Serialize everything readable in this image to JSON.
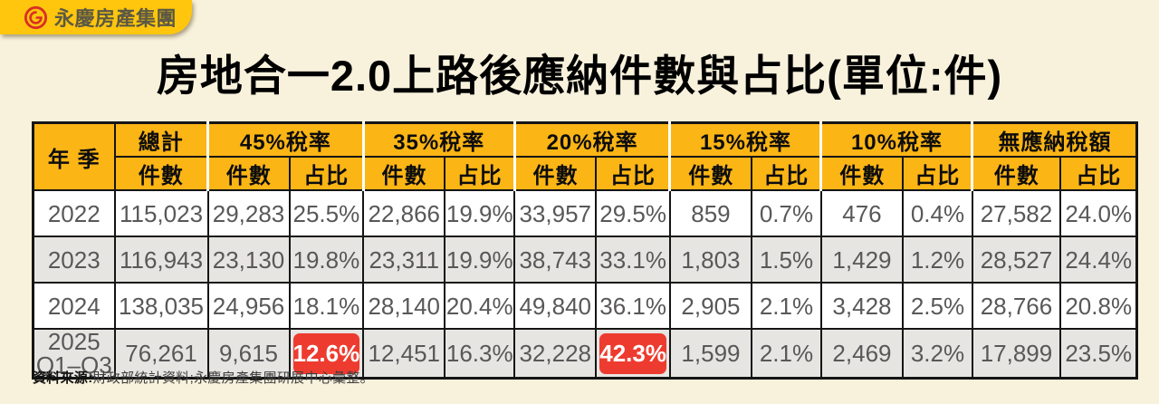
{
  "logo": {
    "company": "永慶房產集團",
    "icon": "yungching-spiral-g-icon"
  },
  "title": {
    "normal": "房地合一2.0上路後",
    "strong": "應納件數與占比(單位:件)"
  },
  "chart_data": {
    "type": "table",
    "title": "房地合一2.0上路後應納件數與占比(單位:件)",
    "year_header": "年 季",
    "groups": [
      {
        "label": "總計",
        "subs": [
          "件數"
        ]
      },
      {
        "label": "45%稅率",
        "subs": [
          "件數",
          "占比"
        ]
      },
      {
        "label": "35%稅率",
        "subs": [
          "件數",
          "占比"
        ]
      },
      {
        "label": "20%稅率",
        "subs": [
          "件數",
          "占比"
        ]
      },
      {
        "label": "15%稅率",
        "subs": [
          "件數",
          "占比"
        ]
      },
      {
        "label": "10%稅率",
        "subs": [
          "件數",
          "占比"
        ]
      },
      {
        "label": "無應納稅額",
        "subs": [
          "件數",
          "占比"
        ]
      }
    ],
    "rows": [
      {
        "year_lines": [
          "2022"
        ],
        "cells": [
          "115,023",
          "29,283",
          "25.5%",
          "22,866",
          "19.9%",
          "33,957",
          "29.5%",
          "859",
          "0.7%",
          "476",
          "0.4%",
          "27,582",
          "24.0%"
        ],
        "highlight": []
      },
      {
        "year_lines": [
          "2023"
        ],
        "cells": [
          "116,943",
          "23,130",
          "19.8%",
          "23,311",
          "19.9%",
          "38,743",
          "33.1%",
          "1,803",
          "1.5%",
          "1,429",
          "1.2%",
          "28,527",
          "24.4%"
        ],
        "highlight": []
      },
      {
        "year_lines": [
          "2024"
        ],
        "cells": [
          "138,035",
          "24,956",
          "18.1%",
          "28,140",
          "20.4%",
          "49,840",
          "36.1%",
          "2,905",
          "2.1%",
          "3,428",
          "2.5%",
          "28,766",
          "20.8%"
        ],
        "highlight": []
      },
      {
        "year_lines": [
          "2025",
          "Q1–Q3"
        ],
        "cells": [
          "76,261",
          "9,615",
          "12.6%",
          "12,451",
          "16.3%",
          "32,228",
          "42.3%",
          "1,599",
          "2.1%",
          "2,469",
          "3.2%",
          "17,899",
          "23.5%"
        ],
        "highlight": [
          2,
          6
        ]
      }
    ]
  },
  "footer": {
    "label": "資料來源:",
    "text": "財政部統計資料;永慶房產集團研展中心彙整。"
  },
  "colors": {
    "background": "#F8F1DC",
    "header_yellow": "#FBB515",
    "logo_yellow": "#FFC60D",
    "logo_red": "#D93025",
    "highlight_red": "#EE3B2F",
    "row_gray": "#E7E5E2",
    "data_text": "#595757",
    "border_black": "#151515"
  }
}
